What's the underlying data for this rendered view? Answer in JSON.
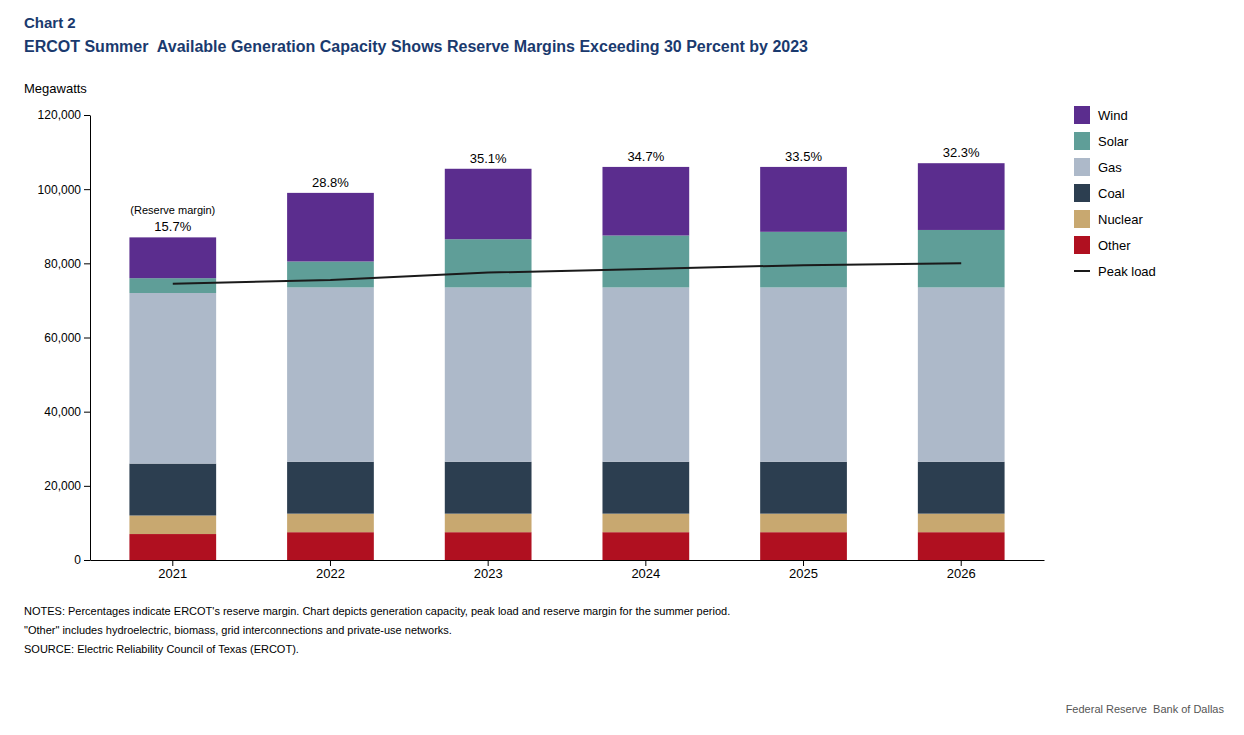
{
  "chart_data": {
    "type": "bar",
    "stacked": true,
    "title": "Chart 2",
    "subtitle": "ERCOT Summer  Available Generation Capacity Shows Reserve Margins Exceeding 30 Percent by 2023",
    "y_label": "Megawatts",
    "categories": [
      "2021",
      "2022",
      "2023",
      "2024",
      "2025",
      "2026"
    ],
    "series": [
      {
        "name": "Other",
        "color": "#b01020",
        "values": [
          7000,
          7500,
          7500,
          7500,
          7500,
          7500
        ]
      },
      {
        "name": "Nuclear",
        "color": "#c8a870",
        "values": [
          5000,
          5000,
          5000,
          5000,
          5000,
          5000
        ]
      },
      {
        "name": "Coal",
        "color": "#2c3e50",
        "values": [
          14000,
          14000,
          14000,
          14000,
          14000,
          14000
        ]
      },
      {
        "name": "Gas",
        "color": "#adb9c9",
        "values": [
          46000,
          47000,
          47000,
          47000,
          47000,
          47000
        ]
      },
      {
        "name": "Solar",
        "color": "#5f9e98",
        "values": [
          4000,
          7000,
          13000,
          14000,
          15000,
          15500
        ]
      },
      {
        "name": "Wind",
        "color": "#5b2d8e",
        "values": [
          11000,
          18500,
          19000,
          18500,
          17500,
          18000
        ]
      },
      {
        "name": "Peak load",
        "type": "line",
        "color": "#1a1a1a",
        "values": [
          74500,
          75500,
          77500,
          78500,
          79500,
          80000
        ]
      }
    ],
    "ylim": [
      0,
      120000
    ],
    "yticks": [
      0,
      {
        "value": 20000,
        "label": "20,000"
      },
      {
        "value": 40000,
        "label": "40,000"
      },
      {
        "value": 60000,
        "label": "60,000"
      },
      {
        "value": 80000,
        "label": "80,000"
      },
      {
        "value": 100000,
        "label": "100,000"
      },
      {
        "value": 120000,
        "label": "120,000"
      }
    ],
    "annotations": [
      {
        "text": "15.7%",
        "x": "2021"
      },
      {
        "text": "28.8%",
        "x": "2022"
      },
      {
        "text": "35.1%",
        "x": "2023"
      },
      {
        "text": "34.7%",
        "x": "2024"
      },
      {
        "text": "33.5%",
        "x": "2025"
      },
      {
        "text": "32.3%",
        "x": "2026"
      },
      {
        "text": "(Reserve margin)",
        "x": "2021"
      }
    ],
    "notes": [
      "NOTES: Percentages indicate ERCOT's reserve margin. Chart depicts generation capacity, peak load and reserve margin for the summer period.",
      "\"Other\" includes hydroelectric, biomass, grid interconnections and private-use networks.",
      "SOURCE: Electric Reliability Council of Texas (ERCOT)."
    ],
    "credit": "Federal Reserve  Bank of Dallas",
    "grid": false,
    "legend": "right"
  }
}
